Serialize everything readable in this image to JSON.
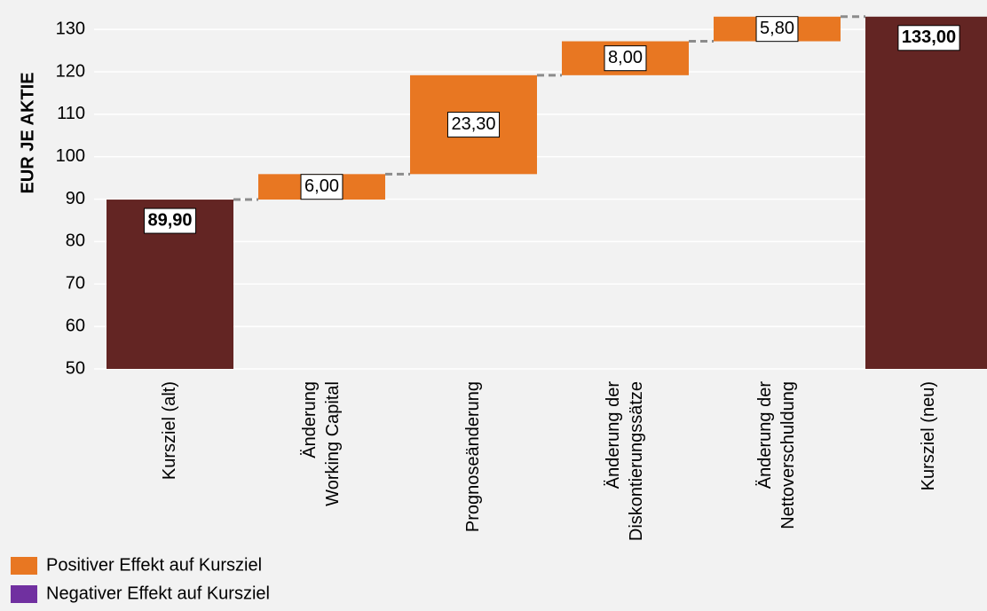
{
  "chart_data": {
    "type": "waterfall",
    "y_label": "EUR JE AKTIE",
    "categories": [
      [
        "Kursziel (alt)"
      ],
      [
        "Änderung",
        "Working Capital"
      ],
      [
        "Prognoseänderung"
      ],
      [
        "Änderung der",
        "Diskontierungssätze"
      ],
      [
        "Änderung der",
        "Nettoverschuldung"
      ],
      [
        "Kursziel (neu)"
      ]
    ],
    "values": [
      89.9,
      6.0,
      23.3,
      8.0,
      5.8,
      133.0
    ],
    "value_labels": [
      "89,90",
      "6,00",
      "23,30",
      "8,00",
      "5,80",
      "133,00"
    ],
    "measure": [
      "absolute",
      "relative",
      "relative",
      "relative",
      "relative",
      "absolute"
    ],
    "total_color": "#632523",
    "legend": [
      {
        "name": "Positiver Effekt auf Kursziel",
        "color": "#e87722"
      },
      {
        "name": "Negativer Effekt auf Kursziel",
        "color": "#7030a0"
      }
    ],
    "ylim": [
      50,
      134
    ],
    "yticks": [
      50,
      60,
      70,
      80,
      90,
      100,
      110,
      120,
      130
    ],
    "grid": true
  }
}
